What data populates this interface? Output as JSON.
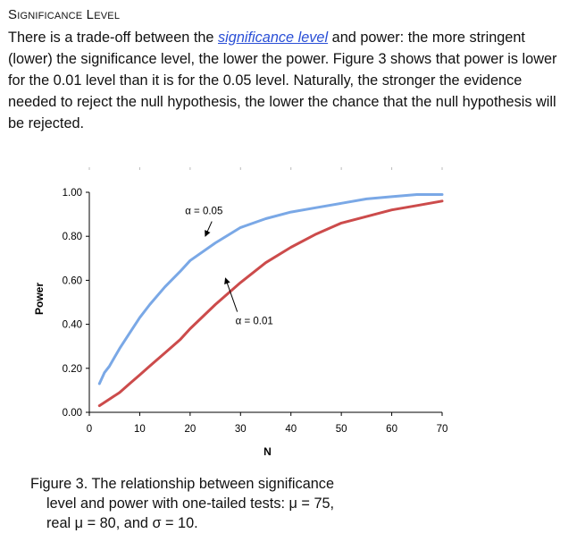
{
  "section": {
    "heading": "Significance Level",
    "para_before_link": "There is a trade-off between the ",
    "link_text": "significance level",
    "para_after_link": " and power: the more stringent (lower) the significance level, the lower the power. Figure 3 shows that power is lower for the 0.01 level than it is for the 0.05 level. Naturally, the stronger the evidence needed to reject the null hypothesis, the lower the chance that the null hypothesis will be rejected."
  },
  "figure": {
    "caption_line1": "Figure 3. The relationship between significance",
    "caption_line2": "level and power with one-tailed tests: μ = 75,",
    "caption_line3": "real μ = 80, and σ = 10."
  },
  "chart_data": {
    "type": "line",
    "xlabel": "N",
    "ylabel": "Power",
    "xlim": [
      0,
      70
    ],
    "ylim": [
      0,
      1
    ],
    "x_ticks": [
      "0",
      "10",
      "20",
      "30",
      "40",
      "50",
      "60",
      "70"
    ],
    "y_ticks": [
      "0.00",
      "0.20",
      "0.40",
      "0.60",
      "0.80",
      "1.00"
    ],
    "grid": false,
    "series": [
      {
        "color": "#7aa8e6",
        "x": [
          2,
          3,
          4,
          5,
          6,
          8,
          10,
          12,
          15,
          18,
          20,
          25,
          30,
          35,
          40,
          45,
          50,
          55,
          60,
          65,
          70
        ],
        "y": [
          0.13,
          0.18,
          0.21,
          0.25,
          0.29,
          0.36,
          0.43,
          0.49,
          0.57,
          0.64,
          0.69,
          0.77,
          0.84,
          0.88,
          0.91,
          0.93,
          0.95,
          0.97,
          0.98,
          0.99,
          0.99
        ]
      },
      {
        "color": "#cc4b4b",
        "x": [
          2,
          4,
          6,
          8,
          10,
          12,
          15,
          18,
          20,
          25,
          30,
          35,
          40,
          45,
          50,
          55,
          60,
          65,
          70
        ],
        "y": [
          0.03,
          0.06,
          0.09,
          0.13,
          0.17,
          0.21,
          0.27,
          0.33,
          0.38,
          0.49,
          0.59,
          0.68,
          0.75,
          0.81,
          0.86,
          0.89,
          0.92,
          0.94,
          0.96
        ]
      }
    ],
    "annotations": [
      {
        "text": "α = 0.05",
        "x": 19,
        "y": 0.9,
        "arrow_to": [
          23,
          0.8
        ]
      },
      {
        "text": "α = 0.01",
        "x": 29,
        "y": 0.4,
        "arrow_to": [
          27,
          0.61
        ]
      }
    ]
  }
}
